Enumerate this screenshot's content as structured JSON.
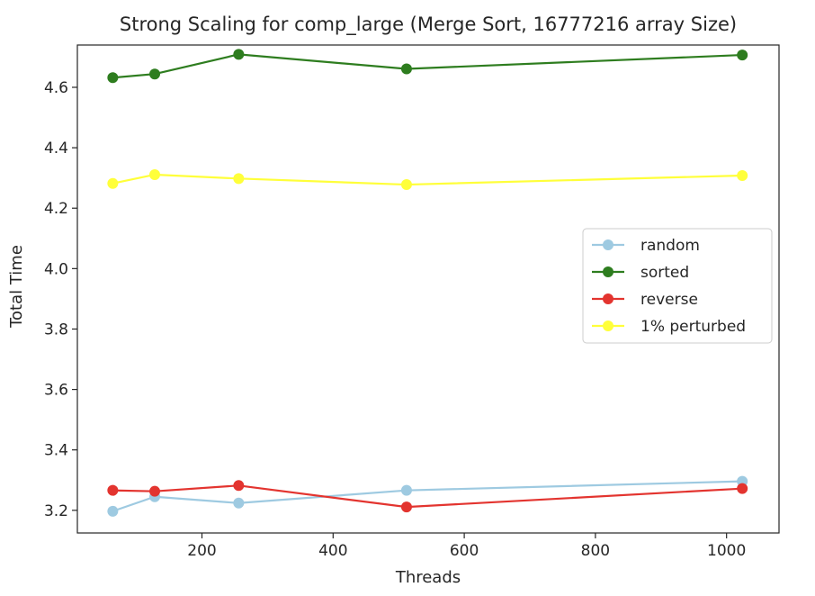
{
  "chart_data": {
    "type": "line",
    "title": "Strong Scaling for comp_large (Merge Sort, 16777216 array Size)",
    "xlabel": "Threads",
    "ylabel": "Total Time",
    "xlim": [
      10,
      1080
    ],
    "ylim": [
      3.125,
      4.74
    ],
    "x_ticks": [
      200,
      400,
      600,
      800,
      1000
    ],
    "y_ticks": [
      3.2,
      3.4,
      3.6,
      3.8,
      4.0,
      4.2,
      4.4,
      4.6
    ],
    "x_tick_labels": [
      "200",
      "400",
      "600",
      "800",
      "1000"
    ],
    "y_tick_labels": [
      "3.2",
      "3.4",
      "3.6",
      "3.8",
      "4.0",
      "4.2",
      "4.4",
      "4.6"
    ],
    "grid": false,
    "legend_placement": "center-right",
    "x": [
      64,
      128,
      256,
      512,
      1024
    ],
    "series": [
      {
        "name": "random",
        "color": "#9ecae1",
        "values": [
          3.197,
          3.245,
          3.224,
          3.266,
          3.296
        ]
      },
      {
        "name": "sorted",
        "color": "#2e7d1f",
        "values": [
          4.632,
          4.644,
          4.709,
          4.661,
          4.707
        ]
      },
      {
        "name": "reverse",
        "color": "#e3342f",
        "values": [
          3.266,
          3.263,
          3.282,
          3.211,
          3.272
        ]
      },
      {
        "name": "1% perturbed",
        "color": "#ffff3a",
        "values": [
          4.282,
          4.311,
          4.298,
          4.278,
          4.308
        ]
      }
    ]
  }
}
